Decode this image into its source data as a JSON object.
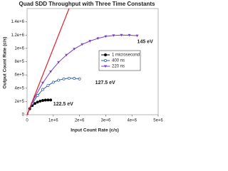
{
  "chart_data": {
    "type": "line",
    "title": "Quad SDD Throughput with Three Time Constants",
    "x_label": "Input Count Rate (c/s)",
    "y_label": "Output Count Rate (c/s)",
    "xlim": [
      0,
      5000000
    ],
    "ylim": [
      0,
      1600000
    ],
    "xticks": [
      0,
      {
        "value": 1000000,
        "label": "1e+6"
      },
      {
        "value": 2000000,
        "label": "2e+6"
      },
      {
        "value": 3000000,
        "label": "3e+6"
      },
      {
        "value": 4000000,
        "label": "4e+6"
      },
      {
        "value": 5000000,
        "label": "5e+6"
      }
    ],
    "yticks": [
      0,
      {
        "value": 200000,
        "label": "2e+5"
      },
      {
        "value": 400000,
        "label": "4e+5"
      },
      {
        "value": 600000,
        "label": "6e+5"
      },
      {
        "value": 800000,
        "label": "8e+5"
      },
      {
        "value": 1000000,
        "label": "1e+6"
      },
      {
        "value": 1200000,
        "label": "1.2e+6"
      },
      {
        "value": 1400000,
        "label": "1.4e+6"
      }
    ],
    "series": [
      {
        "name": "1 microsecond",
        "color": "#000000",
        "marker": "filled-circle",
        "x": [
          0,
          100000,
          200000,
          300000,
          400000,
          500000,
          600000,
          700000,
          800000,
          900000
        ],
        "values": [
          0,
          90000,
          140000,
          170000,
          190000,
          205000,
          215000,
          220000,
          222000,
          222000
        ]
      },
      {
        "name": "400 ns",
        "color": "#2a5caa",
        "marker": "open-circle",
        "x": [
          0,
          200000,
          400000,
          600000,
          800000,
          1000000,
          1200000,
          1400000,
          1600000,
          1800000,
          2000000
        ],
        "values": [
          0,
          170000,
          290000,
          380000,
          440000,
          490000,
          520000,
          540000,
          550000,
          548000,
          540000
        ]
      },
      {
        "name": "220 ns",
        "color": "#7b3fc4",
        "marker": "triangle",
        "x": [
          0,
          300000,
          600000,
          900000,
          1200000,
          1500000,
          1800000,
          2100000,
          2400000,
          2700000,
          3000000,
          3300000,
          3600000,
          3900000,
          4200000
        ],
        "values": [
          0,
          270000,
          480000,
          650000,
          790000,
          900000,
          990000,
          1060000,
          1110000,
          1150000,
          1180000,
          1195000,
          1200000,
          1198000,
          1190000
        ]
      },
      {
        "color": "#e0202a",
        "marker": "none",
        "x": [
          0,
          1600000
        ],
        "values": [
          0,
          1600000
        ]
      }
    ],
    "annotations": [
      {
        "text": "145 eV",
        "color": "#7b3fc4",
        "x": 4200000,
        "y": 1100000
      },
      {
        "text": "127.5 eV",
        "color": "#2a5caa",
        "x": 2600000,
        "y": 480000
      },
      {
        "text": "122.5 eV",
        "color": "#000000",
        "x": 1000000,
        "y": 160000
      }
    ]
  }
}
